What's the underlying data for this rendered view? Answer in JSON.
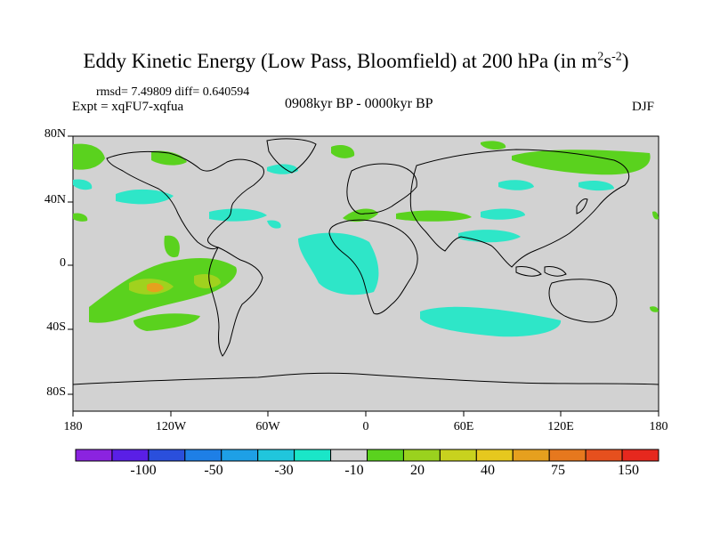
{
  "title": {
    "main": "Eddy Kinetic Energy (Low Pass, Bloomfield) at 200 hPa (in m",
    "sup1": "2",
    "mid": "s",
    "sup2": "-2",
    "end": ")"
  },
  "stats": "rmsd= 7.49809 diff= 0.640594",
  "experiment": "Expt = xqFU7-xqfua",
  "period": "0908kyr BP - 0000kyr BP",
  "season": "DJF",
  "lat_labels": [
    "80N",
    "40N",
    "0",
    "40S",
    "80S"
  ],
  "lon_labels": [
    "180",
    "120W",
    "60W",
    "0",
    "60E",
    "120E",
    "180"
  ],
  "colorbar": {
    "colors": [
      "#8b23e0",
      "#5a1fe6",
      "#2a4fdc",
      "#1e7fe6",
      "#1ea0e6",
      "#20c6dc",
      "#1ae6c8",
      "#d2d2d2",
      "#5ad21e",
      "#9ad21e",
      "#c8d21e",
      "#e6c81e",
      "#e6a01e",
      "#e6781e",
      "#e6501e",
      "#e6281e"
    ],
    "labels": [
      "-100",
      "-50",
      "-30",
      "-10",
      "20",
      "40",
      "75",
      "150"
    ]
  },
  "colors": {
    "ocean": "#d2d2d2",
    "coast": "#000000",
    "neg": "#2ee6c8",
    "pos1": "#5ad21e",
    "pos2": "#a0d21e",
    "pos3": "#e6a01e"
  }
}
